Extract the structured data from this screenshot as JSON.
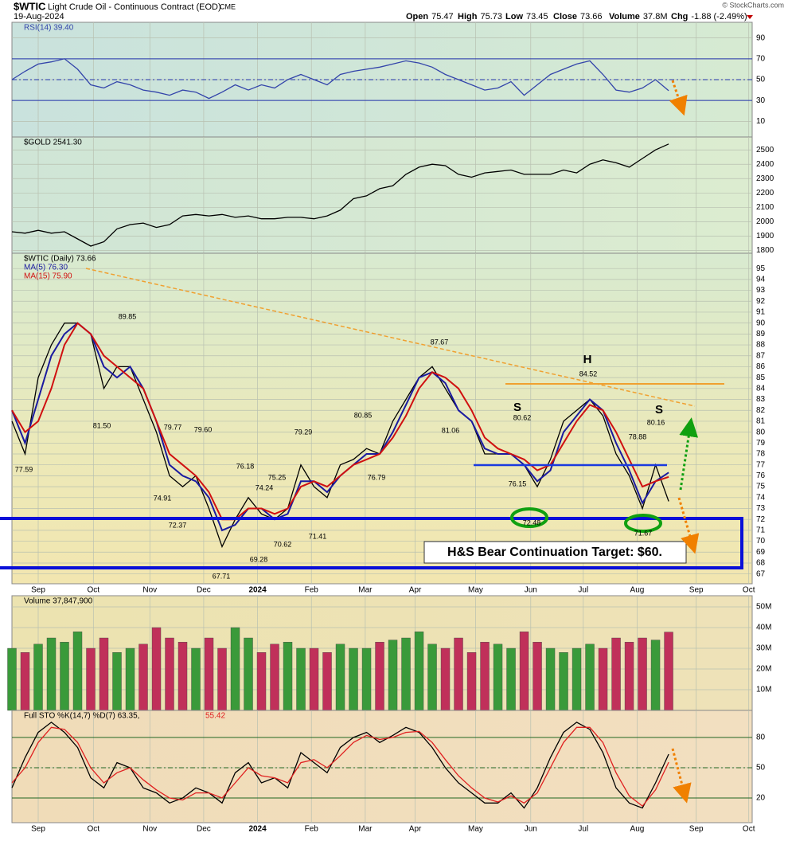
{
  "header": {
    "symbol": "$WTIC",
    "name": "Light Crude Oil - Continuous Contract (EOD)",
    "exchange": "CME",
    "date": "19-Aug-2024",
    "copyright": "© StockCharts.com",
    "fields": [
      {
        "label": "Open",
        "value": 75.47
      },
      {
        "label": "High",
        "value": 75.73
      },
      {
        "label": "Low",
        "value": 73.45
      },
      {
        "label": "Close",
        "value": 73.66
      },
      {
        "label": "Volume",
        "value": "37.8M"
      },
      {
        "label": "Chg",
        "value": "-1.88 (-2.49%)"
      }
    ]
  },
  "chart_data": [
    {
      "type": "line",
      "xlim": [
        0,
        56.36
      ],
      "ylim": [
        -5,
        105
      ],
      "yticks": [
        10,
        30,
        50,
        70,
        90
      ],
      "reference_lines": [
        70,
        50,
        30
      ],
      "xticks": [
        2.0,
        6.2,
        10.5,
        14.6,
        18.7,
        22.8,
        26.9,
        30.7,
        35.3,
        39.5,
        43.5,
        47.6,
        52.1,
        56.1
      ],
      "series": [
        {
          "name": "RSI(14) 39.40",
          "color": "#3344aa",
          "values": [
            50,
            58,
            65,
            67,
            70,
            60,
            45,
            42,
            48,
            45,
            40,
            38,
            35,
            40,
            38,
            32,
            38,
            45,
            40,
            45,
            42,
            50,
            55,
            50,
            45,
            55,
            58,
            60,
            62,
            65,
            68,
            66,
            62,
            55,
            50,
            45,
            40,
            42,
            48,
            35,
            45,
            55,
            60,
            65,
            68,
            55,
            40,
            38,
            42,
            50,
            39.4
          ]
        }
      ]
    },
    {
      "type": "line",
      "xlim": [
        0,
        56.36
      ],
      "ylim": [
        1780,
        2590
      ],
      "yticks": [
        1800,
        1900,
        2000,
        2100,
        2200,
        2300,
        2400,
        2500
      ],
      "xticks": [
        2.0,
        6.2,
        10.5,
        14.6,
        18.7,
        22.8,
        26.9,
        30.7,
        35.3,
        39.5,
        43.5,
        47.6,
        52.1,
        56.1
      ],
      "series": [
        {
          "name": "$GOLD 2541.30",
          "color": "#000000",
          "values": [
            1930,
            1920,
            1940,
            1920,
            1930,
            1880,
            1830,
            1860,
            1950,
            1980,
            1990,
            1960,
            1980,
            2040,
            2050,
            2040,
            2050,
            2030,
            2040,
            2020,
            2020,
            2030,
            2030,
            2020,
            2040,
            2080,
            2160,
            2180,
            2230,
            2250,
            2330,
            2380,
            2400,
            2390,
            2330,
            2310,
            2340,
            2350,
            2360,
            2330,
            2330,
            2330,
            2360,
            2340,
            2400,
            2430,
            2410,
            2380,
            2440,
            2500,
            2541.3
          ]
        }
      ]
    },
    {
      "type": "line",
      "xlim": [
        0,
        56.36
      ],
      "ylim": [
        66.1,
        96.4
      ],
      "yticks": [
        67,
        68,
        69,
        70,
        71,
        72,
        73,
        74,
        75,
        76,
        77,
        78,
        79,
        80,
        81,
        82,
        83,
        84,
        85,
        86,
        87,
        88,
        89,
        90,
        91,
        92,
        93,
        94,
        95
      ],
      "xticks": [
        {
          "value": 2.0,
          "label": "Sep"
        },
        {
          "value": 6.2,
          "label": "Oct"
        },
        {
          "value": 10.5,
          "label": "Nov"
        },
        {
          "value": 14.6,
          "label": "Dec"
        },
        {
          "value": 18.7,
          "label": "2024"
        },
        {
          "value": 22.8,
          "label": "Feb"
        },
        {
          "value": 26.9,
          "label": "Mar"
        },
        {
          "value": 30.7,
          "label": "Apr"
        },
        {
          "value": 35.3,
          "label": "May"
        },
        {
          "value": 39.5,
          "label": "Jun"
        },
        {
          "value": 43.5,
          "label": "Jul"
        },
        {
          "value": 47.6,
          "label": "Aug"
        },
        {
          "value": 52.1,
          "label": "Sep"
        },
        {
          "value": 56.1,
          "label": "Oct"
        }
      ],
      "series": [
        {
          "name": "$WTIC (Daily) 73.66",
          "color": "#000000",
          "values": [
            81,
            78,
            85,
            88,
            90,
            90,
            89,
            84,
            86,
            86,
            83,
            80,
            76,
            75,
            76,
            73,
            69.5,
            72,
            74,
            72.5,
            72,
            73,
            77,
            75,
            74,
            77,
            77.5,
            78.5,
            78,
            81,
            83,
            85,
            86,
            84,
            82,
            81,
            78,
            78,
            78,
            77,
            75,
            77.5,
            81,
            82,
            83,
            81.5,
            78,
            76,
            73,
            77,
            73.66
          ]
        },
        {
          "name": "MA(5) 76.30",
          "color": "#1a1aa0",
          "values": [
            82,
            79,
            83,
            87,
            89,
            90,
            89,
            86,
            85,
            86,
            84,
            81,
            77,
            76,
            75.5,
            74,
            71,
            71.5,
            73,
            73,
            72,
            72.5,
            75.5,
            75.5,
            74.5,
            76,
            77,
            78,
            78,
            80,
            82.5,
            85,
            85.5,
            84.5,
            82,
            81,
            78.5,
            78,
            78,
            77,
            75.5,
            76.5,
            80,
            81.5,
            83,
            82,
            79,
            76.5,
            73.5,
            75.5,
            76.3
          ]
        },
        {
          "name": "MA(15) 75.90",
          "color": "#d01010",
          "values": [
            82,
            80,
            81,
            84,
            88,
            90,
            89,
            87,
            86,
            85,
            84,
            81,
            78,
            77,
            76,
            74.5,
            72,
            72,
            73,
            73,
            72.5,
            73,
            75,
            75.5,
            75,
            76,
            77,
            77.5,
            78,
            79.5,
            81.5,
            84,
            85.5,
            85,
            84,
            82,
            79.5,
            78.5,
            78,
            77.5,
            76.5,
            77,
            79,
            81,
            82.5,
            82,
            80,
            77.5,
            75,
            75.5,
            75.9
          ]
        }
      ],
      "annotations": [
        "89.85",
        "81.50",
        "77.59",
        "79.77",
        "74.91",
        "79.60",
        "72.37",
        "76.18",
        "74.24",
        "75.25",
        "67.71",
        "69.28",
        "70.62",
        "79.29",
        "71.41",
        "80.85",
        "76.79",
        "87.67",
        "81.06",
        "80.62",
        "76.15",
        "72.48",
        "84.52",
        "78.88",
        "80.16",
        "71.67",
        "S",
        "H",
        "S",
        "H&S Bear Continuation Target: $60."
      ]
    },
    {
      "type": "bar",
      "xlim": [
        0,
        56.36
      ],
      "ylim": [
        0,
        55400000
      ],
      "up_color": "#3a9a3a",
      "down_color": "#c0305a",
      "yticks": [
        {
          "value": 10000000,
          "label": "10M"
        },
        {
          "value": 20000000,
          "label": "20M"
        },
        {
          "value": 30000000,
          "label": "30M"
        },
        {
          "value": 40000000,
          "label": "40M"
        },
        {
          "value": 50000000,
          "label": "50M"
        }
      ],
      "xticks": [
        2.0,
        6.2,
        10.5,
        14.6,
        18.7,
        22.8,
        26.9,
        30.7,
        35.3,
        39.5,
        43.5,
        47.6,
        52.1,
        56.1
      ],
      "series": [
        {
          "name": "Volume 37,847,900",
          "color": "#000000",
          "values": [
            30000000,
            28000000,
            32000000,
            35000000,
            33000000,
            38000000,
            30000000,
            35000000,
            28000000,
            30000000,
            32000000,
            40000000,
            35000000,
            33000000,
            30000000,
            35000000,
            30000000,
            40000000,
            35000000,
            28000000,
            32000000,
            33000000,
            30000000,
            30000000,
            28000000,
            32000000,
            30000000,
            30000000,
            33000000,
            34000000,
            35000000,
            38000000,
            32000000,
            30000000,
            35000000,
            28000000,
            33000000,
            32000000,
            30000000,
            38000000,
            33000000,
            30000000,
            28000000,
            30000000,
            32000000,
            30000000,
            35000000,
            33000000,
            35000000,
            34000000,
            37847900
          ]
        }
      ]
    },
    {
      "type": "line",
      "xlim": [
        0,
        56.36
      ],
      "ylim": [
        -4.5,
        106.8
      ],
      "yticks": [
        20,
        50,
        80
      ],
      "reference_lines": [
        80,
        50,
        20
      ],
      "xticks": [
        {
          "value": 2.0,
          "label": "Sep"
        },
        {
          "value": 6.2,
          "label": "Oct"
        },
        {
          "value": 10.5,
          "label": "Nov"
        },
        {
          "value": 14.6,
          "label": "Dec"
        },
        {
          "value": 18.7,
          "label": "2024"
        },
        {
          "value": 22.8,
          "label": "Feb"
        },
        {
          "value": 26.9,
          "label": "Mar"
        },
        {
          "value": 30.7,
          "label": "Apr"
        },
        {
          "value": 35.3,
          "label": "May"
        },
        {
          "value": 39.5,
          "label": "Jun"
        },
        {
          "value": 43.5,
          "label": "Jul"
        },
        {
          "value": 47.6,
          "label": "Aug"
        },
        {
          "value": 52.1,
          "label": "Sep"
        },
        {
          "value": 56.1,
          "label": "Oct"
        }
      ],
      "series": [
        {
          "name": "Full STO %K(14,7) %D(7) 63.35,",
          "color": "#000000",
          "values": [
            30,
            60,
            85,
            95,
            85,
            70,
            40,
            30,
            55,
            50,
            30,
            25,
            15,
            20,
            30,
            25,
            15,
            45,
            55,
            35,
            40,
            30,
            65,
            55,
            45,
            70,
            80,
            85,
            75,
            82,
            90,
            85,
            70,
            50,
            35,
            25,
            15,
            15,
            25,
            10,
            30,
            60,
            85,
            95,
            88,
            65,
            30,
            15,
            10,
            35,
            63.35
          ]
        },
        {
          "name": "55.42",
          "color": "#e02020",
          "values": [
            35,
            50,
            75,
            90,
            88,
            75,
            50,
            35,
            45,
            50,
            38,
            28,
            20,
            18,
            25,
            25,
            20,
            35,
            50,
            42,
            40,
            35,
            55,
            58,
            50,
            62,
            75,
            82,
            78,
            80,
            85,
            86,
            75,
            58,
            42,
            30,
            20,
            16,
            22,
            15,
            25,
            50,
            75,
            90,
            90,
            75,
            45,
            22,
            12,
            28,
            55.42
          ]
        }
      ]
    }
  ]
}
